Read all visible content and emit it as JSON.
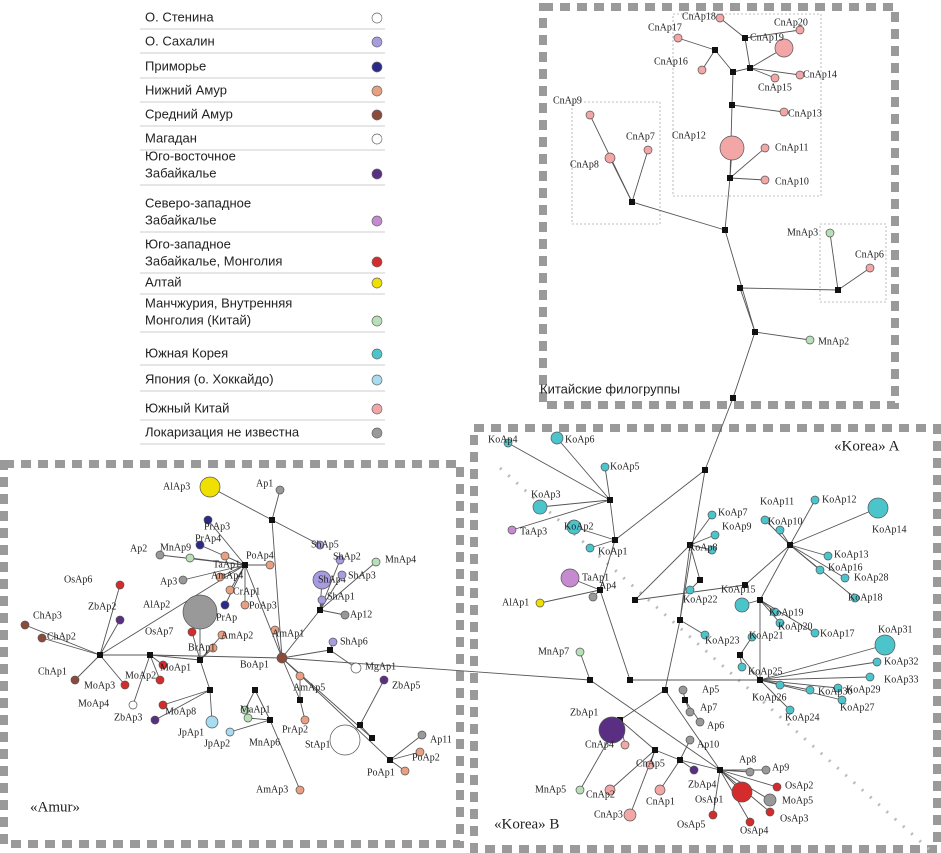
{
  "legend": [
    {
      "label": [
        "О. Стенина"
      ],
      "color": "#ffffff"
    },
    {
      "label": [
        "О. Сахалин"
      ],
      "color": "#a99be0"
    },
    {
      "label": [
        "Приморье"
      ],
      "color": "#2b2a8a"
    },
    {
      "label": [
        "Нижний Амур"
      ],
      "color": "#e8a080"
    },
    {
      "label": [
        "Средний Амур"
      ],
      "color": "#8b4a3a"
    },
    {
      "label": [
        "Магадан"
      ],
      "color": "#ffffff"
    },
    {
      "label": [
        "Юго-восточное",
        "Забайкалье"
      ],
      "color": "#5a2e82"
    },
    {
      "label": [
        "Северо-западное",
        "Забайкалье"
      ],
      "color": "#c68ad0"
    },
    {
      "label": [
        "Юго-западное",
        "Забайкалье, Монголия"
      ],
      "color": "#d42c2c"
    },
    {
      "label": [
        "Алтай"
      ],
      "color": "#f0e000"
    },
    {
      "label": [
        "Манчжурия, Внутренняя",
        "Монголия (Китай)"
      ],
      "color": "#b8e0b8"
    },
    {
      "label": [
        "Южная Корея"
      ],
      "color": "#4cc4cc"
    },
    {
      "label": [
        "Япония (о. Хоккайдо)"
      ],
      "color": "#a8dcf0"
    },
    {
      "label": [
        "Южный Китай"
      ],
      "color": "#f2a6a6"
    },
    {
      "label": [
        "Локаризация не известна"
      ],
      "color": "#999999"
    }
  ],
  "groups": {
    "china": "Китайские филогруппы",
    "korea_a": "«Korea» A",
    "korea_b": "«Korea» B",
    "amur": "«Amur»"
  },
  "nodes": [
    "CnAp18",
    "CnAp17",
    "CnAp19",
    "CnAp20",
    "CnAp16",
    "CnAp15",
    "CnAp14",
    "CnAp13",
    "CnAp12",
    "CnAp11",
    "CnAp10",
    "CnAp9",
    "CnAp8",
    "CnAp7",
    "MnAp3",
    "CnAp6",
    "MnAp2",
    "KoAp4",
    "KoAp6",
    "KoAp5",
    "KoAp3",
    "KoAp2",
    "TaAp3",
    "TaAp1",
    "AlAp1",
    "Ap4",
    "KoAp1",
    "KoAp7",
    "KoAp9",
    "KoAp8",
    "KoAp11",
    "KoAp10",
    "KoAp12",
    "KoAp14",
    "KoAp13",
    "KoAp16",
    "KoAp28",
    "KoAp15",
    "KoAp18",
    "KoAp19",
    "KoAp20",
    "KoAp21",
    "KoAp23",
    "KoAp22",
    "KoAp17",
    "KoAp31",
    "KoAp32",
    "KoAp33",
    "KoAp29",
    "KoAp30",
    "KoAp27",
    "KoAp26",
    "KoAp24",
    "KoAp25",
    "MnAp7",
    "ZbAp1",
    "MnAp5",
    "Ap5",
    "Ap7",
    "Ap6",
    "Ap10",
    "CnAp4",
    "CnAp5",
    "CnAp2",
    "CnAp1",
    "CnAp3",
    "ZbAp4",
    "Ap8",
    "Ap9",
    "OsAp1",
    "MoAp5",
    "OsAp2",
    "OsAp3",
    "OsAp4",
    "OsAp5",
    "AlAp3",
    "Ap1",
    "PrAp3",
    "PrAp4",
    "MnAp9",
    "Ap2",
    "TaAp1",
    "AmAp4",
    "Ap3",
    "CrAp1",
    "PoAp4",
    "ShAp5",
    "ShAp2",
    "ShAp4",
    "ShAp3",
    "MnAp4",
    "OsAp6",
    "ZbAp2",
    "AlAp2",
    "PoAp3",
    "PrAp",
    "Ap12",
    "ShAp1",
    "AmAp1",
    "AmAp2",
    "OsAp7",
    "BrAp1",
    "ShAp6",
    "BoAp1",
    "MoAp1",
    "MoAp2",
    "MoAp3",
    "ChAp3",
    "ChAp2",
    "ChAp1",
    "MgAp1",
    "ZbAp5",
    "AmAp5",
    "MoAp4",
    "MoAp8",
    "ZbAp3",
    "MaAp1",
    "MnAp6",
    "JpAp1",
    "JpAp2",
    "PrAp2",
    "StAp1",
    "Ap11",
    "PoAp1",
    "PoAp2",
    "AmAp3"
  ]
}
